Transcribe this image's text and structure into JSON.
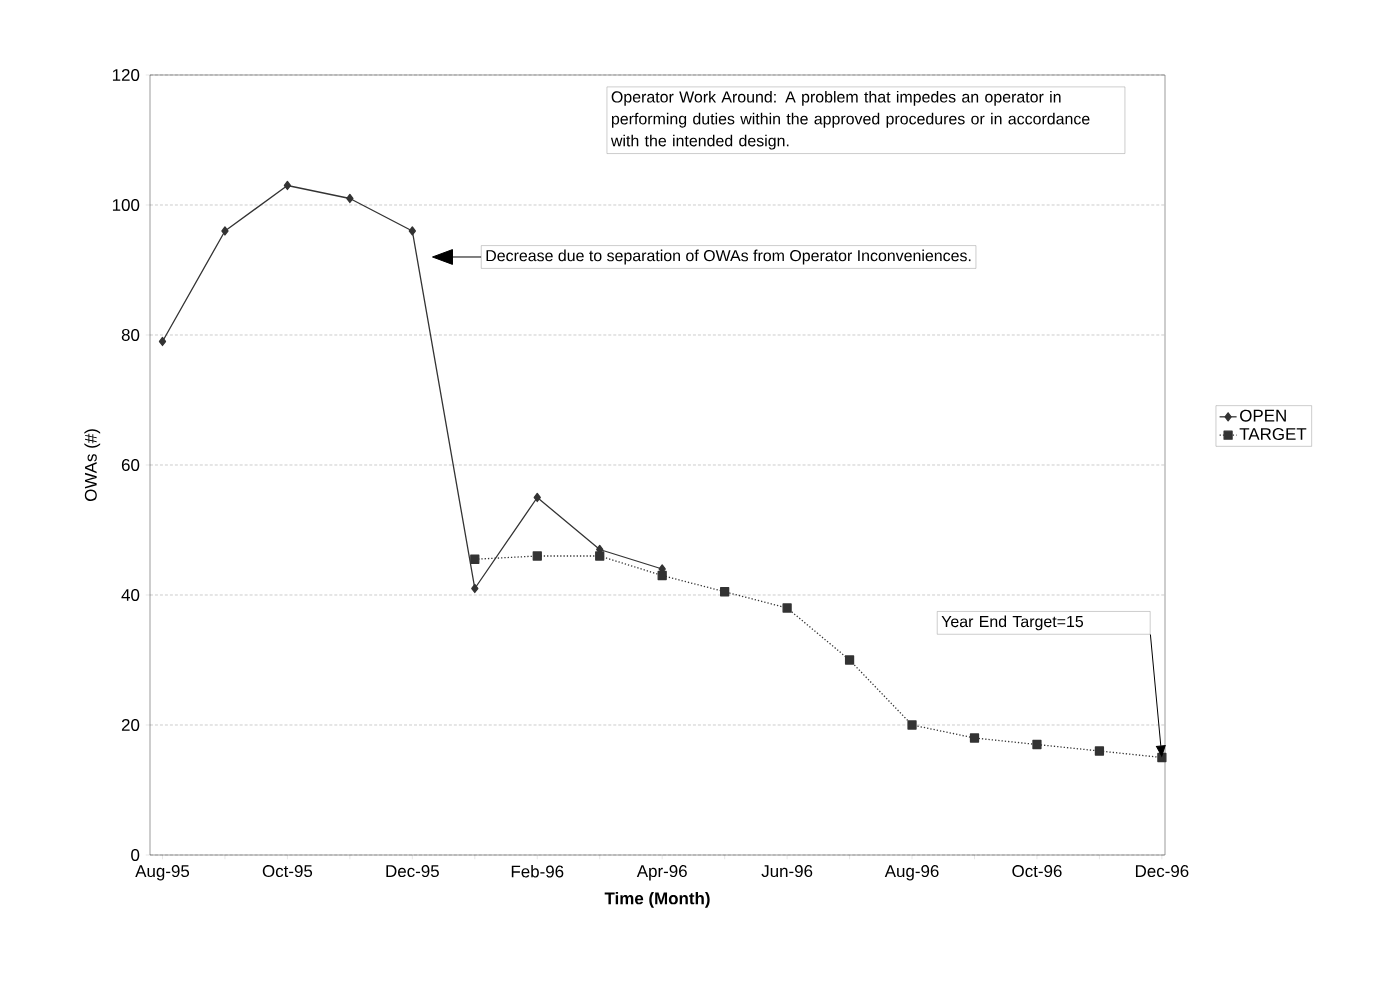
{
  "chart_data": {
    "type": "line",
    "xlabel": "Time (Month)",
    "ylabel": "OWAs (#)",
    "categories": [
      "Aug-95",
      null,
      "Oct-95",
      null,
      "Dec-95",
      null,
      "Feb-96",
      null,
      "Apr-96",
      null,
      "Jun-96",
      null,
      "Aug-96",
      null,
      "Oct-96",
      null,
      "Dec-96"
    ],
    "series": [
      {
        "name": "OPEN",
        "color": "#333333",
        "marker": "diamond",
        "line_style": "solid",
        "values": [
          79,
          96,
          103,
          101,
          96,
          41,
          55,
          47,
          44,
          null,
          null,
          null,
          null,
          null,
          null,
          null,
          null
        ]
      },
      {
        "name": "TARGET",
        "color": "#333333",
        "marker": "square",
        "line_style": "dotted",
        "values": [
          null,
          null,
          null,
          null,
          null,
          45.5,
          46,
          46,
          43,
          40.5,
          38,
          30,
          20,
          18,
          17,
          16,
          15
        ]
      }
    ],
    "ylim": [
      0,
      120
    ],
    "yticks": [
      0,
      20,
      40,
      60,
      80,
      100,
      120
    ],
    "grid": "y",
    "legend": "right",
    "annotations": [
      "Operator Work Around: A problem that impedes an operator in performing duties within the approved procedures or in accordance with the intended design.",
      "Decrease due to separation of OWAs from Operator Inconveniences.",
      "Year End Target=15"
    ]
  }
}
